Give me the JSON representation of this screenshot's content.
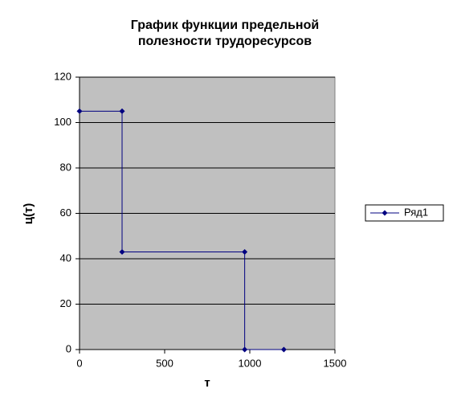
{
  "chart_data": {
    "type": "scatter-line",
    "title": [
      "График функции предельной",
      "полезности трудоресурсов"
    ],
    "x_label": "т",
    "y_label": "ц(т)",
    "x": [
      0,
      250,
      250,
      970,
      970,
      1200
    ],
    "series": [
      {
        "name": "Ряд1",
        "color": "#000080",
        "values": [
          105,
          105,
          43,
          43,
          0,
          0
        ]
      }
    ],
    "xlim": [
      0,
      1500
    ],
    "xticks": [
      0,
      500,
      1000,
      1500
    ],
    "ylim": [
      0,
      120
    ],
    "yticks": [
      0,
      20,
      40,
      60,
      80,
      100,
      120
    ],
    "grid": true,
    "plot_background": "#c0c0c0",
    "legend": "right"
  }
}
